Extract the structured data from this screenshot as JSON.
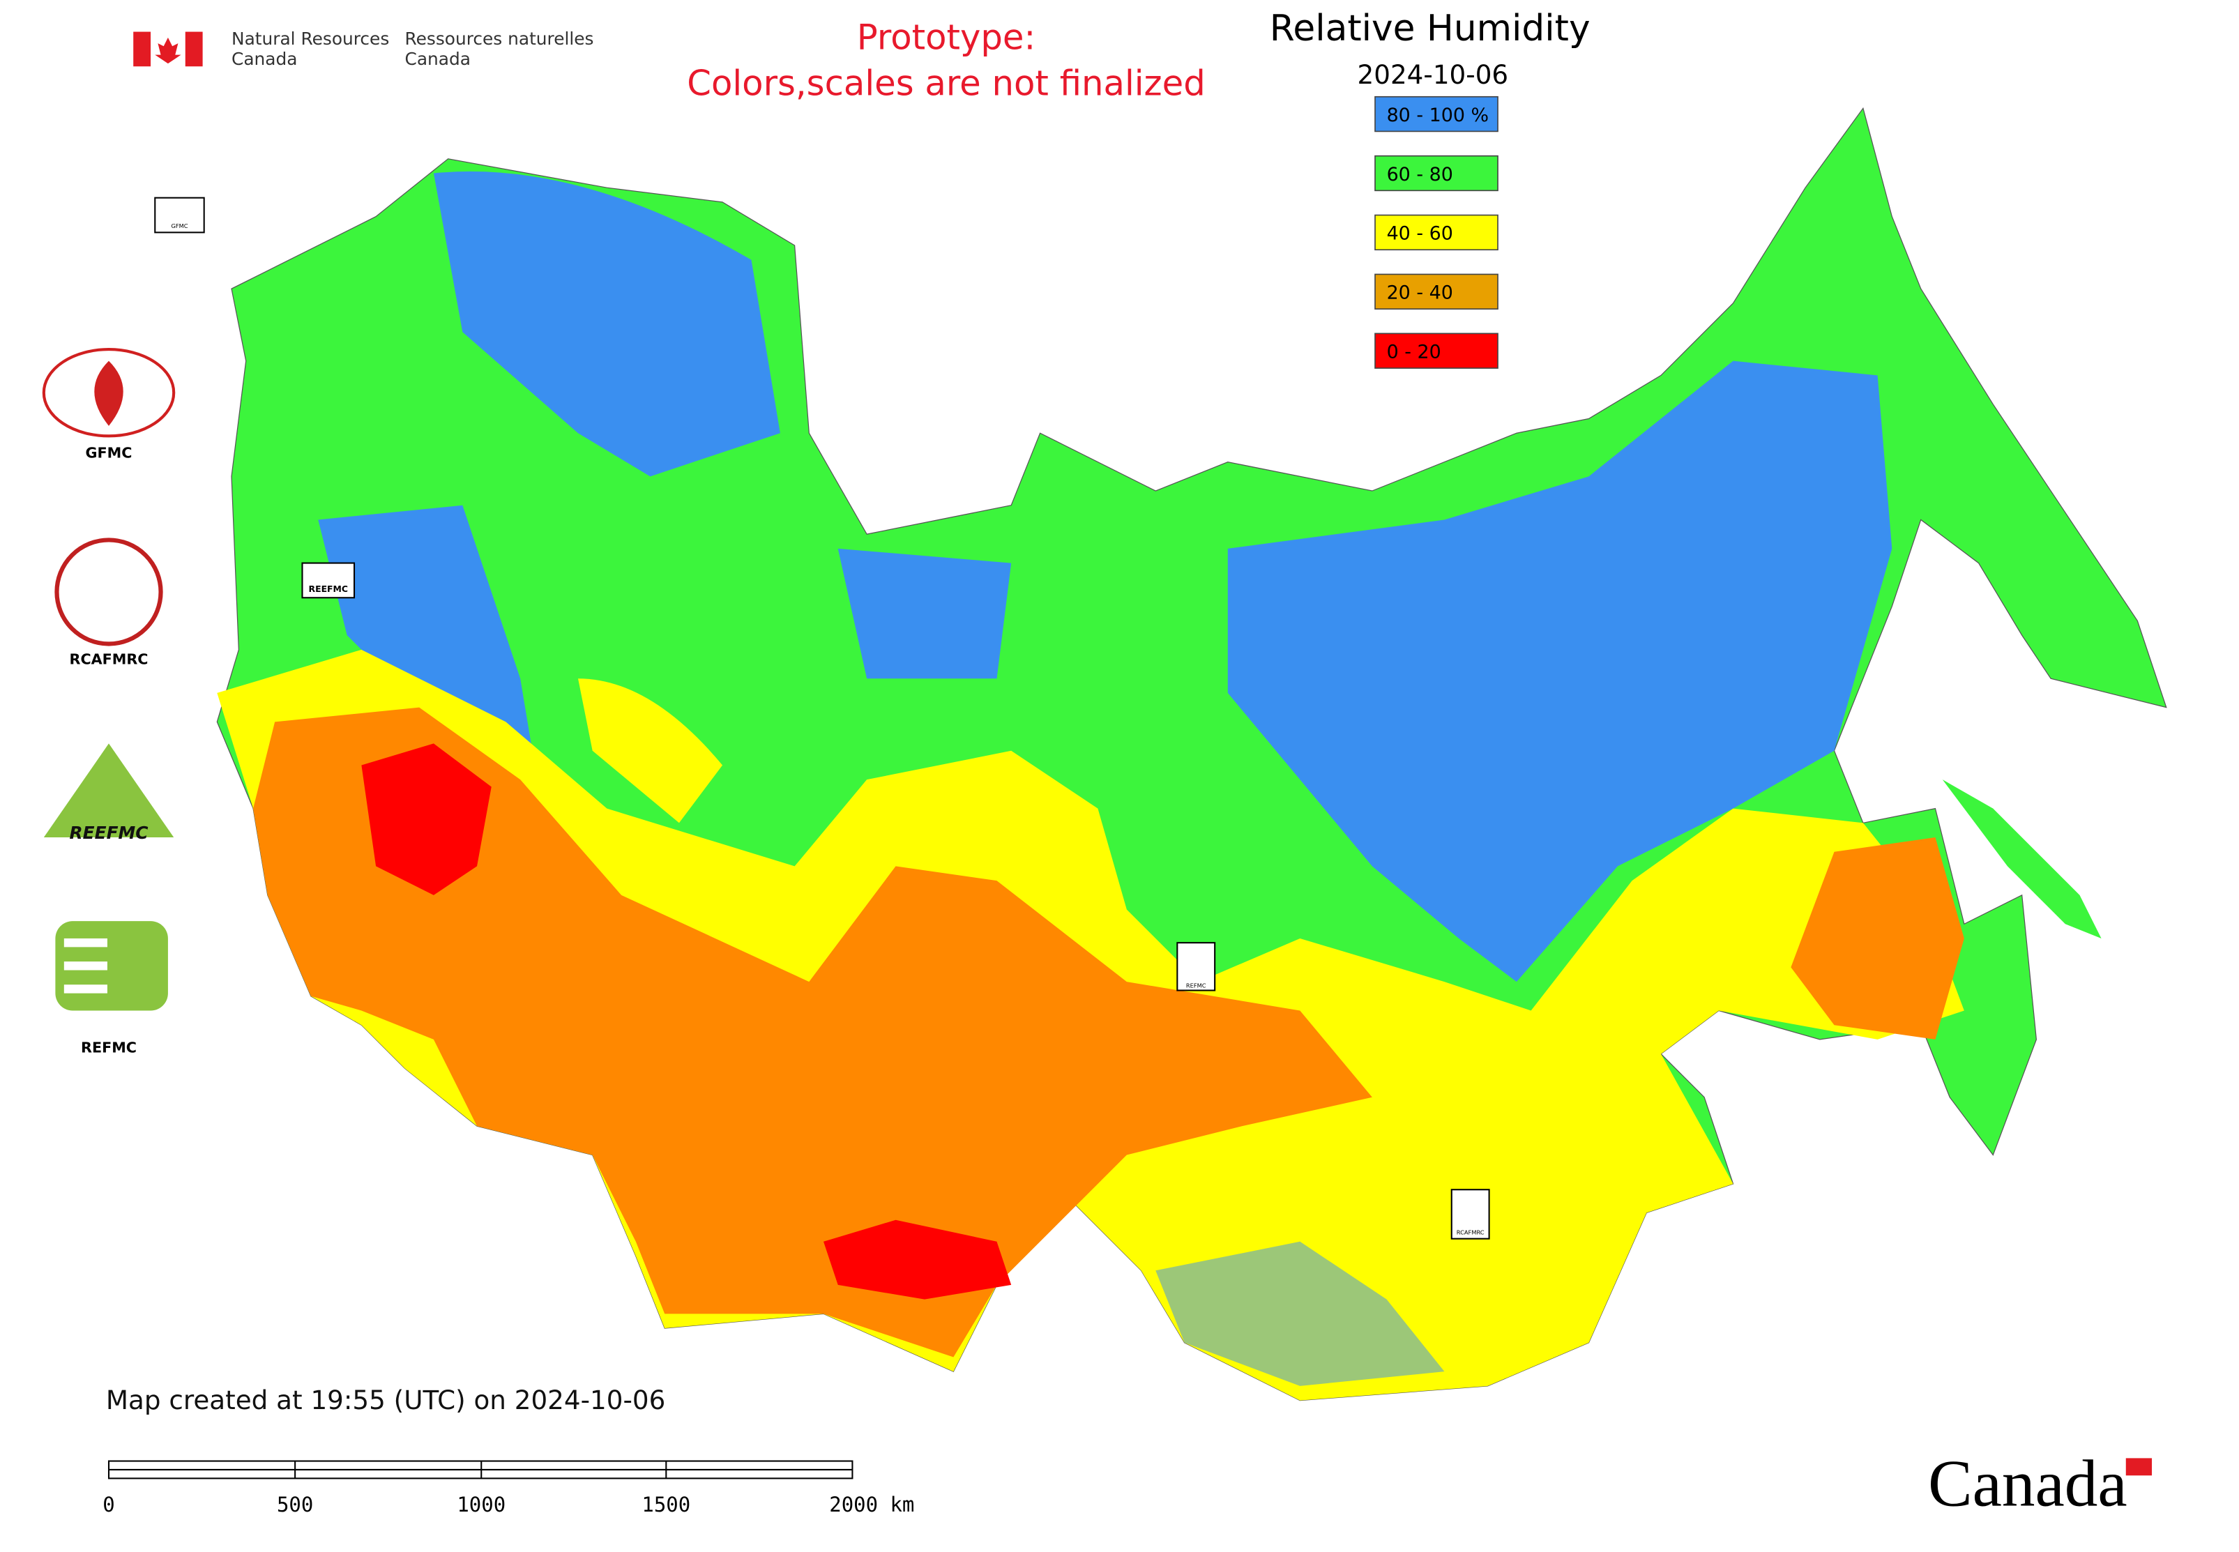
{
  "header": {
    "agency_en": [
      "Natural Resources",
      "Canada"
    ],
    "agency_fr": [
      "Ressources naturelles",
      "Canada"
    ]
  },
  "prototype_note": [
    "Prototype:",
    "Colors,scales are not finalized"
  ],
  "title": "Relative Humidity",
  "date": "2024-10-06",
  "legend": [
    {
      "label": "80 - 100 %",
      "color": "#3a8ff0"
    },
    {
      "label": "60 - 80",
      "color": "#3cf53c"
    },
    {
      "label": "40 - 60",
      "color": "#ffff00"
    },
    {
      "label": "20 - 40",
      "color": "#e8a000"
    },
    {
      "label": "0 - 20",
      "color": "#ff0000"
    }
  ],
  "logos": [
    "GFMC",
    "RCAFMRC",
    "REEFMC",
    "REFMC"
  ],
  "map_markers": [
    "GFMC",
    "REEFMC",
    "REFMC",
    "RCAFMRC"
  ],
  "created": "Map created at 19:55 (UTC) on 2024-10-06",
  "scale_labels": [
    "0",
    "500",
    "1000",
    "1500",
    "2000 km"
  ],
  "wordmark": "Canada"
}
